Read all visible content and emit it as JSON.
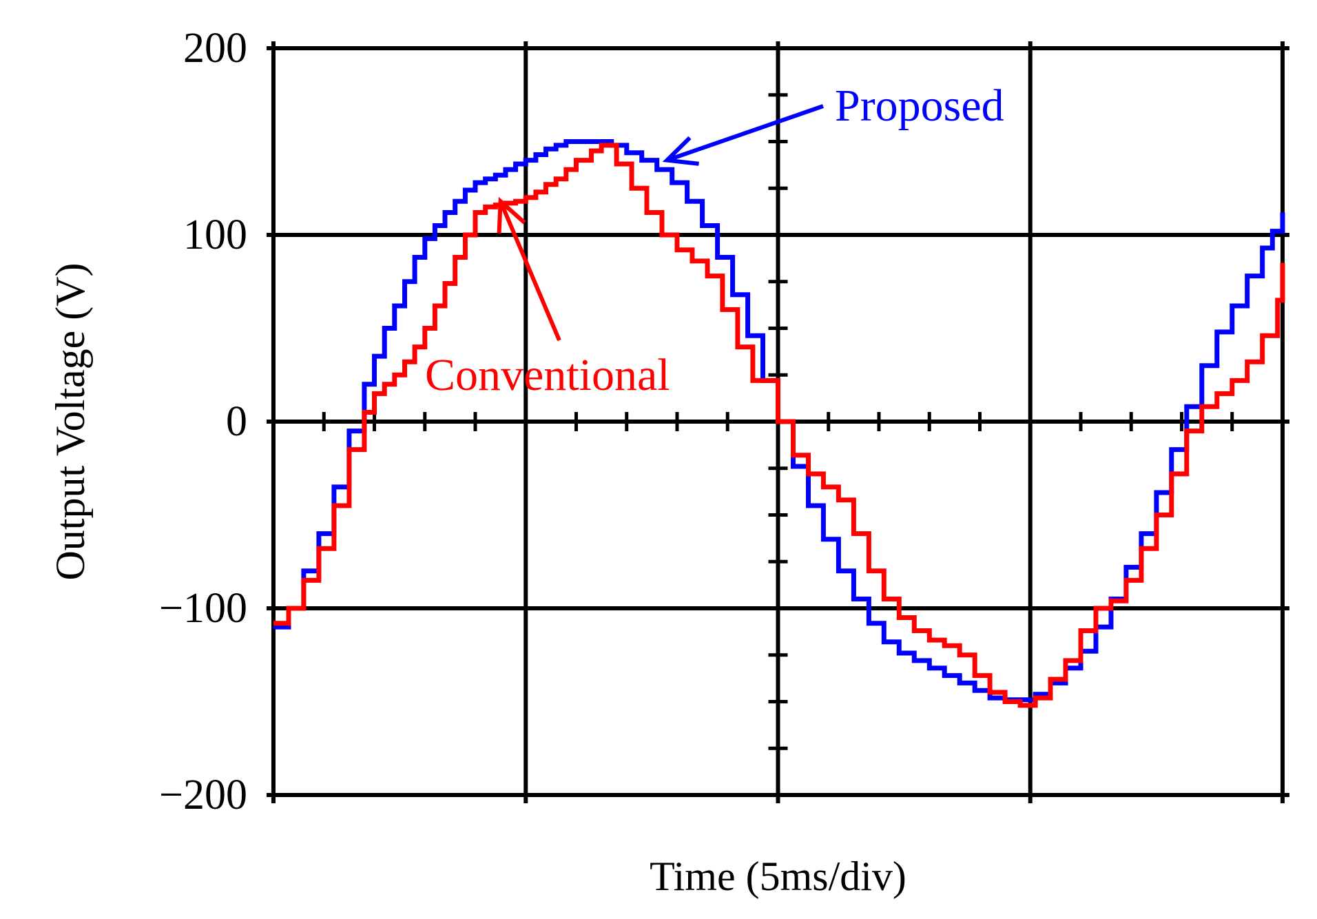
{
  "chart_data": {
    "type": "line",
    "title": "",
    "xlabel": "Time (5ms/div)",
    "ylabel": "Output Voltage (V)",
    "xlim": [
      0,
      20
    ],
    "ylim": [
      -200,
      200
    ],
    "x_divisions": 4,
    "y_ticks": [
      200,
      100,
      0,
      -100,
      -200
    ],
    "y_tick_labels": [
      "200",
      "100",
      "0",
      "−100",
      "−200"
    ],
    "grid": true,
    "series": [
      {
        "name": "Proposed",
        "color": "#0000ff",
        "points": [
          [
            0.0,
            -110
          ],
          [
            0.3,
            -100
          ],
          [
            0.6,
            -80
          ],
          [
            0.9,
            -60
          ],
          [
            1.2,
            -35
          ],
          [
            1.5,
            -5
          ],
          [
            1.8,
            20
          ],
          [
            2.0,
            35
          ],
          [
            2.2,
            50
          ],
          [
            2.4,
            62
          ],
          [
            2.6,
            75
          ],
          [
            2.8,
            88
          ],
          [
            3.0,
            98
          ],
          [
            3.2,
            105
          ],
          [
            3.4,
            112
          ],
          [
            3.6,
            118
          ],
          [
            3.8,
            124
          ],
          [
            4.0,
            128
          ],
          [
            4.2,
            130
          ],
          [
            4.4,
            132
          ],
          [
            4.6,
            135
          ],
          [
            4.8,
            138
          ],
          [
            5.0,
            140
          ],
          [
            5.2,
            143
          ],
          [
            5.4,
            146
          ],
          [
            5.6,
            148
          ],
          [
            5.8,
            150
          ],
          [
            6.0,
            150
          ],
          [
            6.4,
            150
          ],
          [
            6.7,
            148
          ],
          [
            7.0,
            144
          ],
          [
            7.3,
            140
          ],
          [
            7.6,
            135
          ],
          [
            7.9,
            128
          ],
          [
            8.2,
            118
          ],
          [
            8.5,
            105
          ],
          [
            8.8,
            88
          ],
          [
            9.1,
            68
          ],
          [
            9.4,
            46
          ],
          [
            9.7,
            22
          ],
          [
            10.0,
            0
          ],
          [
            10.3,
            -24
          ],
          [
            10.6,
            -45
          ],
          [
            10.9,
            -63
          ],
          [
            11.2,
            -80
          ],
          [
            11.5,
            -95
          ],
          [
            11.8,
            -108
          ],
          [
            12.1,
            -118
          ],
          [
            12.4,
            -124
          ],
          [
            12.7,
            -128
          ],
          [
            13.0,
            -132
          ],
          [
            13.3,
            -136
          ],
          [
            13.6,
            -140
          ],
          [
            13.9,
            -144
          ],
          [
            14.2,
            -148
          ],
          [
            14.5,
            -149
          ],
          [
            14.8,
            -149
          ],
          [
            15.1,
            -146
          ],
          [
            15.4,
            -140
          ],
          [
            15.7,
            -132
          ],
          [
            16.0,
            -123
          ],
          [
            16.3,
            -110
          ],
          [
            16.6,
            -95
          ],
          [
            16.9,
            -78
          ],
          [
            17.2,
            -60
          ],
          [
            17.5,
            -38
          ],
          [
            17.8,
            -15
          ],
          [
            18.1,
            8
          ],
          [
            18.4,
            30
          ],
          [
            18.7,
            48
          ],
          [
            19.0,
            62
          ],
          [
            19.3,
            78
          ],
          [
            19.6,
            93
          ],
          [
            19.8,
            102
          ],
          [
            20.0,
            112
          ]
        ]
      },
      {
        "name": "Conventional",
        "color": "#ff0000",
        "points": [
          [
            0.0,
            -108
          ],
          [
            0.3,
            -100
          ],
          [
            0.6,
            -85
          ],
          [
            0.9,
            -68
          ],
          [
            1.2,
            -45
          ],
          [
            1.5,
            -15
          ],
          [
            1.8,
            5
          ],
          [
            2.0,
            15
          ],
          [
            2.2,
            20
          ],
          [
            2.4,
            25
          ],
          [
            2.6,
            32
          ],
          [
            2.8,
            40
          ],
          [
            3.0,
            50
          ],
          [
            3.2,
            62
          ],
          [
            3.4,
            74
          ],
          [
            3.6,
            88
          ],
          [
            3.8,
            100
          ],
          [
            4.0,
            112
          ],
          [
            4.2,
            115
          ],
          [
            4.4,
            116
          ],
          [
            4.6,
            117
          ],
          [
            4.8,
            118
          ],
          [
            5.0,
            120
          ],
          [
            5.2,
            123
          ],
          [
            5.4,
            127
          ],
          [
            5.6,
            130
          ],
          [
            5.8,
            135
          ],
          [
            6.0,
            140
          ],
          [
            6.3,
            145
          ],
          [
            6.5,
            148
          ],
          [
            6.8,
            138
          ],
          [
            7.1,
            125
          ],
          [
            7.4,
            112
          ],
          [
            7.7,
            100
          ],
          [
            8.0,
            92
          ],
          [
            8.3,
            86
          ],
          [
            8.6,
            78
          ],
          [
            8.9,
            60
          ],
          [
            9.2,
            40
          ],
          [
            9.5,
            22
          ],
          [
            10.0,
            0
          ],
          [
            10.3,
            -18
          ],
          [
            10.6,
            -28
          ],
          [
            10.9,
            -35
          ],
          [
            11.2,
            -42
          ],
          [
            11.5,
            -60
          ],
          [
            11.8,
            -80
          ],
          [
            12.1,
            -95
          ],
          [
            12.4,
            -105
          ],
          [
            12.7,
            -112
          ],
          [
            13.0,
            -117
          ],
          [
            13.3,
            -120
          ],
          [
            13.6,
            -125
          ],
          [
            13.9,
            -136
          ],
          [
            14.2,
            -145
          ],
          [
            14.5,
            -150
          ],
          [
            14.8,
            -152
          ],
          [
            15.1,
            -148
          ],
          [
            15.4,
            -138
          ],
          [
            15.7,
            -128
          ],
          [
            16.0,
            -112
          ],
          [
            16.3,
            -100
          ],
          [
            16.6,
            -96
          ],
          [
            16.9,
            -85
          ],
          [
            17.2,
            -68
          ],
          [
            17.5,
            -50
          ],
          [
            17.8,
            -28
          ],
          [
            18.1,
            -5
          ],
          [
            18.4,
            8
          ],
          [
            18.7,
            15
          ],
          [
            19.0,
            22
          ],
          [
            19.3,
            32
          ],
          [
            19.6,
            46
          ],
          [
            19.9,
            65
          ],
          [
            20.0,
            85
          ]
        ]
      }
    ],
    "annotations": [
      {
        "text": "Proposed",
        "series": "Proposed",
        "color": "#0000ff",
        "points_to": [
          7.8,
          140
        ]
      },
      {
        "text": "Conventional",
        "series": "Conventional",
        "color": "#ff0000",
        "points_to": [
          4.5,
          118
        ]
      }
    ]
  }
}
